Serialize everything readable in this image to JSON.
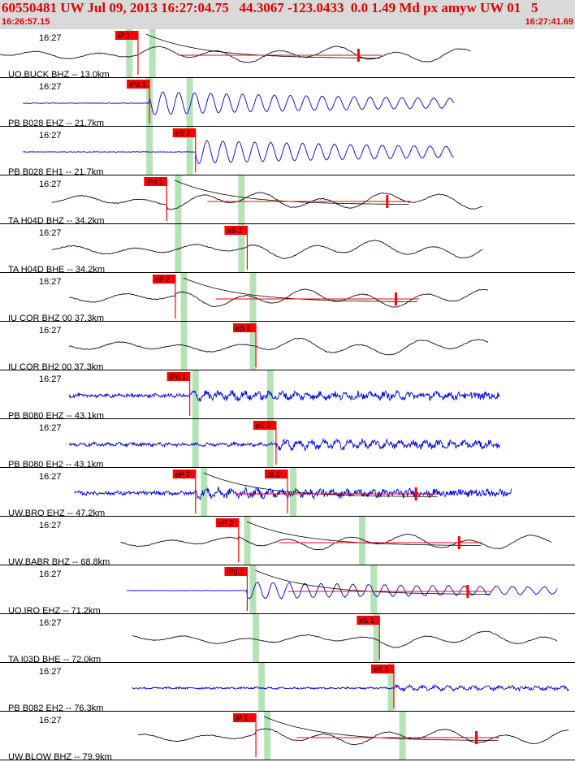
{
  "header": {
    "title": "60550481 UW Jul 09, 2013 16:27:04.75   44.3067 -123.0433  0.0 1.49 Md px amyw UW 01   5",
    "start_time": "16:26:57.15",
    "end_time": "16:27:41.69"
  },
  "colors": {
    "header_bg": "#d9d9d9",
    "header_text": "#e00000",
    "pick_flag": "#ff0000",
    "window_green": "#b5e3b5",
    "trace_black": "#1a0a2e",
    "trace_blue": "#0000dd"
  },
  "traces": [
    {
      "label": "UO.BUCK BHZ -- 13.0km",
      "time": "16:27",
      "color": "black",
      "kind": "smooth",
      "start": 0.0,
      "end": 0.82,
      "pick": "iP 1",
      "pick_x": 0.24,
      "green": [
        0.225,
        0.265
      ],
      "coda": true,
      "amp": 0.45,
      "noise": 0.05
    },
    {
      "label": "PB B028 EHZ -- 21.7km",
      "time": "16:27",
      "color": "blue",
      "kind": "spiky",
      "start": 0.04,
      "end": 0.79,
      "pick": "iPd 1",
      "pick_x": 0.26,
      "green": [
        0.26,
        0.33
      ],
      "coda": false,
      "amp": 0.55,
      "noise": 0.02
    },
    {
      "label": "PB B028 EH1 -- 21.7km",
      "time": "16:27",
      "color": "blue",
      "kind": "spiky",
      "start": 0.04,
      "end": 0.79,
      "pick": "eS 2",
      "pick_x": 0.34,
      "green": [
        0.26,
        0.33
      ],
      "coda": false,
      "amp": 0.55,
      "noise": 0.02
    },
    {
      "label": "TA H04D BHZ -- 34.2km",
      "time": "16:27",
      "color": "black",
      "kind": "smooth",
      "start": 0.09,
      "end": 0.84,
      "pick": "iPd 1",
      "pick_x": 0.29,
      "green": [
        0.31,
        0.42
      ],
      "coda": true,
      "amp": 0.5,
      "noise": 0.05
    },
    {
      "label": "TA H04D BHE -- 34.2km",
      "time": "16:27",
      "color": "black",
      "kind": "smooth",
      "start": 0.09,
      "end": 0.84,
      "pick": "eS 2",
      "pick_x": 0.43,
      "green": [
        0.31,
        0.42
      ],
      "coda": false,
      "amp": 0.5,
      "noise": 0.05
    },
    {
      "label": "IU COR BHZ 00 37.3km",
      "time": "16:27",
      "color": "black",
      "kind": "smooth",
      "start": 0.12,
      "end": 0.85,
      "pick": "eP 2",
      "pick_x": 0.305,
      "green": [
        0.32,
        0.44
      ],
      "coda": true,
      "amp": 0.5,
      "noise": 0.05
    },
    {
      "label": "IU COR BH2 00 37.3km",
      "time": "16:27",
      "color": "black",
      "kind": "smooth",
      "start": 0.12,
      "end": 0.85,
      "pick": "eS 2",
      "pick_x": 0.445,
      "green": [
        0.32,
        0.44
      ],
      "coda": false,
      "amp": 0.5,
      "noise": 0.05
    },
    {
      "label": "PB B080 EHZ -- 43.1km",
      "time": "16:27",
      "color": "blue",
      "kind": "noisy",
      "start": 0.12,
      "end": 0.87,
      "pick": "iPd 1",
      "pick_x": 0.33,
      "green": [
        0.34,
        0.47
      ],
      "coda": false,
      "amp": 0.35,
      "noise": 0.35
    },
    {
      "label": "PB B080 EH2 -- 43.1km",
      "time": "16:27",
      "color": "blue",
      "kind": "noisy",
      "start": 0.12,
      "end": 0.87,
      "pick": "eS 2",
      "pick_x": 0.48,
      "green": [
        0.34,
        0.47
      ],
      "coda": false,
      "amp": 0.4,
      "noise": 0.2
    },
    {
      "label": "UW.BRO EHZ -- 47.2km",
      "time": "16:27",
      "color": "blue",
      "kind": "noisy",
      "start": 0.13,
      "end": 0.89,
      "pick": "eP 2",
      "pick_x": 0.34,
      "pick2": "iS 1",
      "pick2_x": 0.5,
      "green": [
        0.355,
        0.51
      ],
      "coda": true,
      "amp": 0.35,
      "noise": 0.4
    },
    {
      "label": "UW.BABR BHZ -- 68.8km",
      "time": "16:27",
      "color": "black",
      "kind": "smooth",
      "start": 0.21,
      "end": 0.96,
      "pick": "eP 2",
      "pick_x": 0.415,
      "green": [
        0.43,
        0.63
      ],
      "coda": true,
      "amp": 0.45,
      "noise": 0.05
    },
    {
      "label": "UO.IRO EHZ -- 71.2km",
      "time": "16:27",
      "color": "blue",
      "kind": "spiky",
      "start": 0.22,
      "end": 0.97,
      "pick": "iPd 1",
      "pick_x": 0.43,
      "green": [
        0.44,
        0.65
      ],
      "coda": true,
      "amp": 0.4,
      "noise": 0.15
    },
    {
      "label": "TA I03D BHE -- 72.0km",
      "time": "16:27",
      "color": "black",
      "kind": "smooth",
      "start": 0.23,
      "end": 0.97,
      "pick": "eS 1",
      "pick_x": 0.66,
      "green": [
        0.445,
        0.655
      ],
      "coda": false,
      "amp": 0.45,
      "noise": 0.05
    },
    {
      "label": "PB B082 EH2 -- 76.3km",
      "time": "16:27",
      "color": "blue",
      "kind": "noisy",
      "start": 0.23,
      "end": 0.99,
      "pick": "eS 1",
      "pick_x": 0.685,
      "green": [
        0.455,
        0.68
      ],
      "coda": false,
      "amp": 0.2,
      "noise": 0.25
    },
    {
      "label": "UW.BLOW BHZ -- 79.9km",
      "time": "16:27",
      "color": "black",
      "kind": "smooth",
      "start": 0.24,
      "end": 0.99,
      "pick": "iP 1",
      "pick_x": 0.445,
      "green": [
        0.465,
        0.7
      ],
      "coda": true,
      "amp": 0.45,
      "noise": 0.05
    }
  ]
}
